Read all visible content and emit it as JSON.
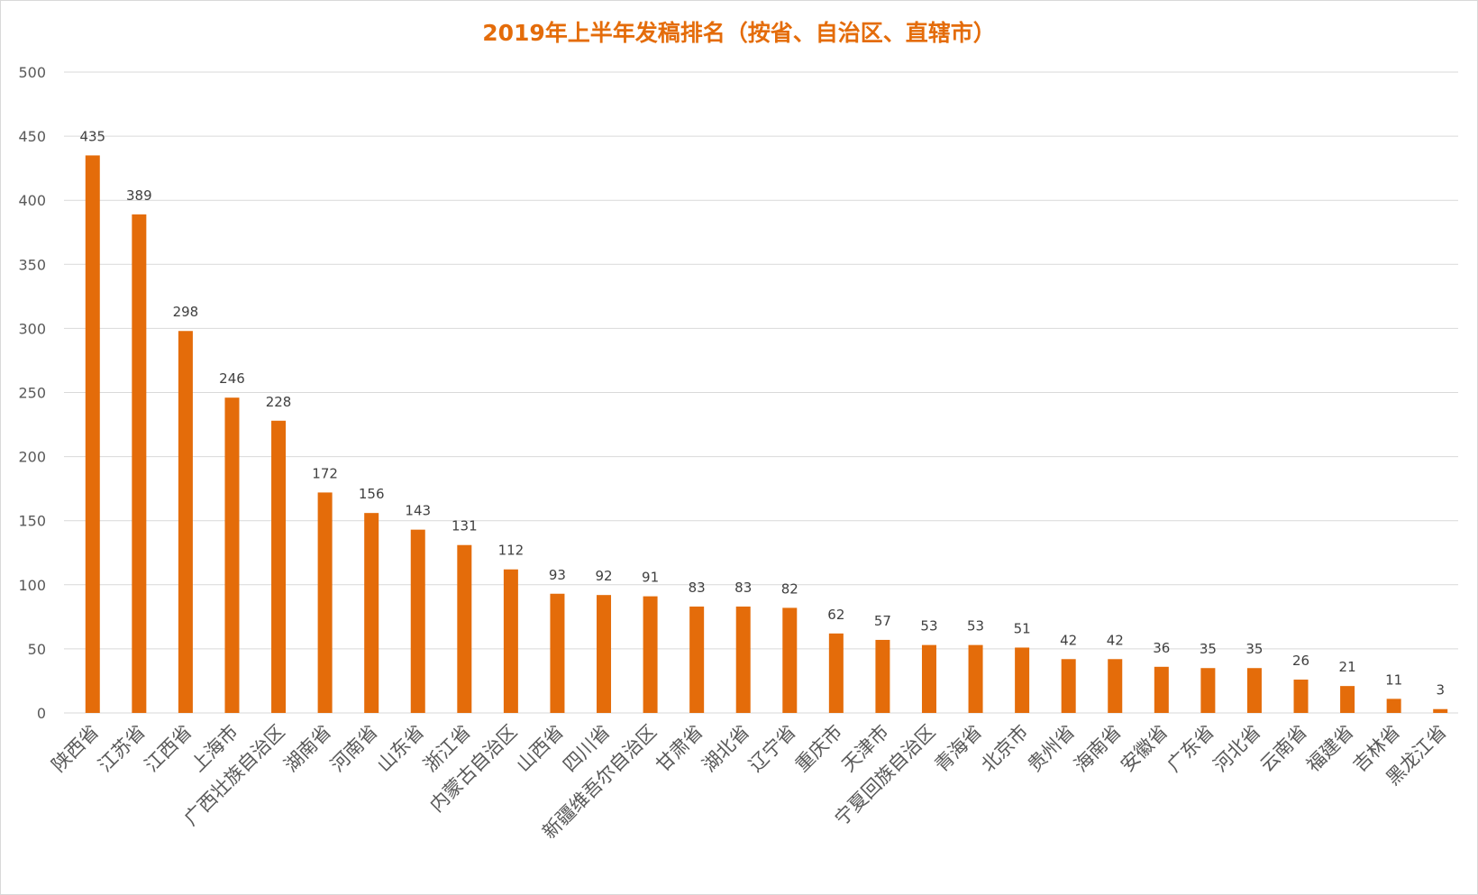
{
  "chart_data": {
    "type": "bar",
    "title": "2019年上半年发稿排名（按省、自治区、直辖市）",
    "xlabel": "",
    "ylabel": "",
    "ylim": [
      0,
      500
    ],
    "yticks": [
      0,
      50,
      100,
      150,
      200,
      250,
      300,
      350,
      400,
      450,
      500
    ],
    "grid": true,
    "legend": "none",
    "categories": [
      "陕西省",
      "江苏省",
      "江西省",
      "上海市",
      "广西壮族自治区",
      "湖南省",
      "河南省",
      "山东省",
      "浙江省",
      "内蒙古自治区",
      "山西省",
      "四川省",
      "新疆维吾尔自治区",
      "甘肃省",
      "湖北省",
      "辽宁省",
      "重庆市",
      "天津市",
      "宁夏回族自治区",
      "青海省",
      "北京市",
      "贵州省",
      "海南省",
      "安徽省",
      "广东省",
      "河北省",
      "云南省",
      "福建省",
      "吉林省",
      "黑龙江省"
    ],
    "values": [
      435,
      389,
      298,
      246,
      228,
      172,
      156,
      143,
      131,
      112,
      93,
      92,
      91,
      83,
      83,
      82,
      62,
      57,
      53,
      53,
      51,
      42,
      42,
      36,
      35,
      35,
      26,
      21,
      11,
      3
    ],
    "colors": {
      "bar": "#E46C0A",
      "title": "#E46C0A",
      "grid": "#D9D9D9",
      "text": "#595959"
    }
  }
}
